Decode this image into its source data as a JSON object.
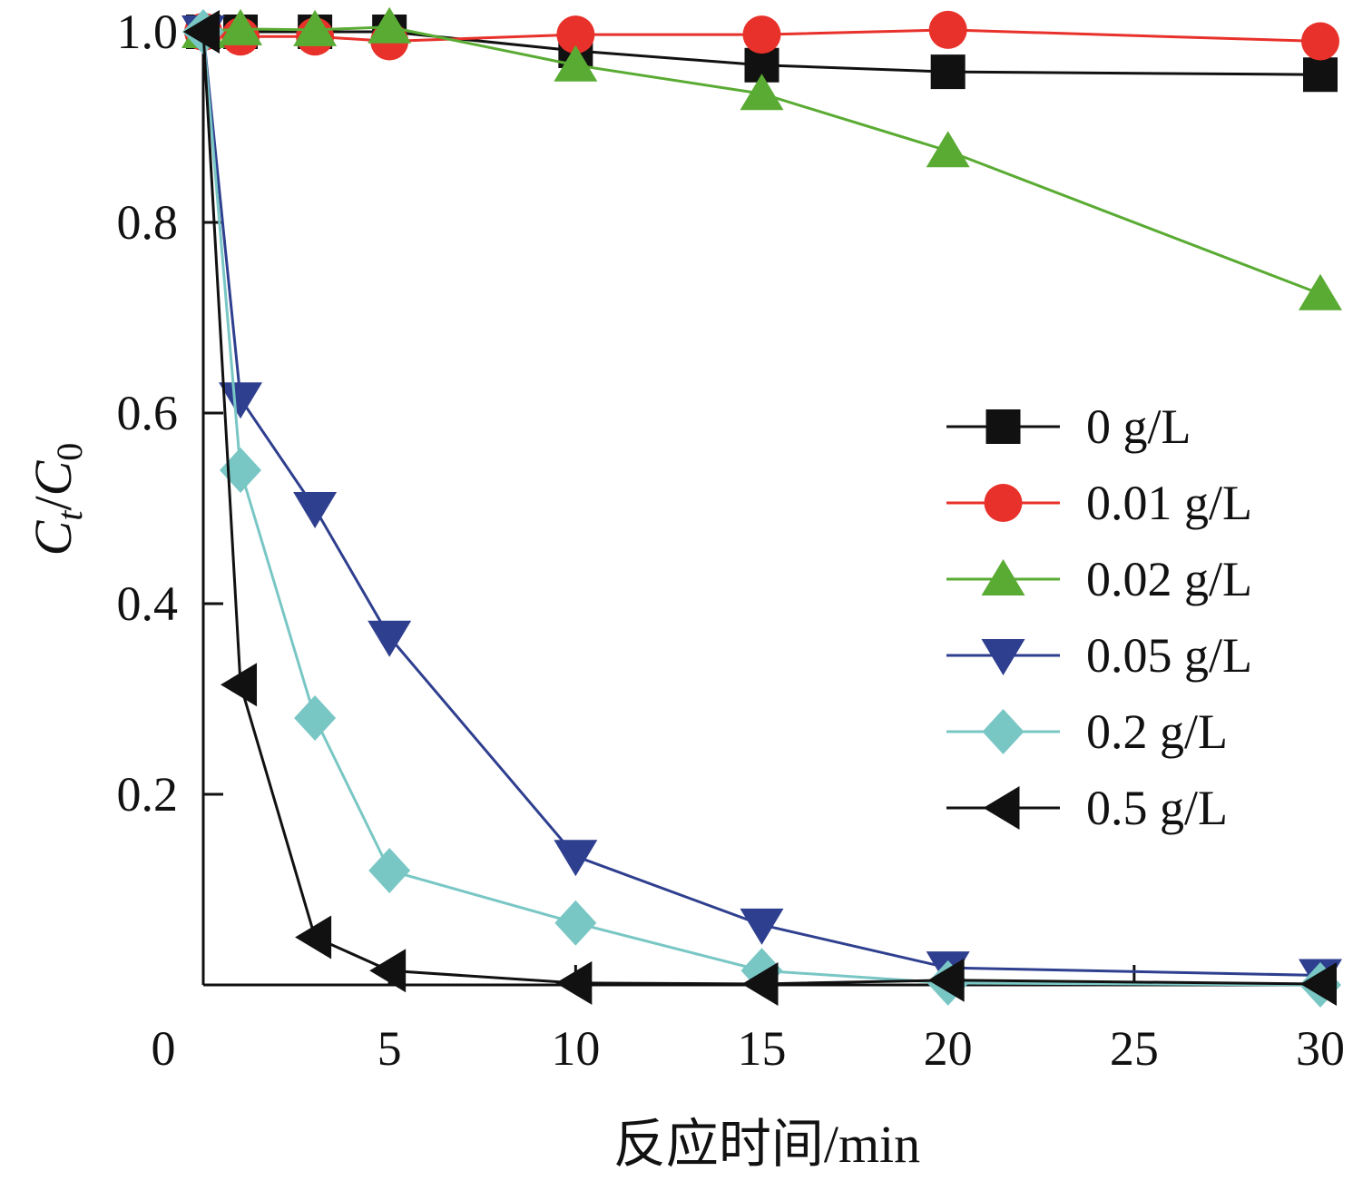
{
  "chart_data": {
    "type": "line",
    "title": "",
    "xlabel": "反应时间/min",
    "ylabel": {
      "main": "C",
      "sub1": "t",
      "sep": "/",
      "main2": "C",
      "sub2": "0"
    },
    "xlim": [
      0,
      30
    ],
    "ylim": [
      0,
      1.0
    ],
    "x_ticks": [
      0,
      5,
      10,
      15,
      20,
      25,
      30
    ],
    "x_tick_labels": [
      "0",
      "5",
      "10",
      "15",
      "20",
      "25",
      "30"
    ],
    "y_ticks": [
      0.2,
      0.4,
      0.6,
      0.8,
      1.0
    ],
    "y_tick_labels": [
      "0.2",
      "0.4",
      "0.6",
      "0.8",
      "1.0"
    ],
    "grid": false,
    "legend_position": "center-right",
    "x": [
      0,
      1,
      3,
      5,
      10,
      15,
      20,
      30
    ],
    "series": [
      {
        "name": "0 g/L",
        "marker": "square",
        "color": "#111111",
        "line_color": "#111111",
        "values": [
          1.0,
          1.0,
          1.0,
          1.0,
          0.98,
          0.965,
          0.958,
          0.955
        ]
      },
      {
        "name": "0.01 g/L",
        "marker": "circle",
        "color": "#e8312a",
        "line_color": "#e8312a",
        "values": [
          1.0,
          0.995,
          0.995,
          0.99,
          0.997,
          0.997,
          1.002,
          0.99
        ]
      },
      {
        "name": "0.02 g/L",
        "marker": "triangle-up",
        "color": "#5aab33",
        "line_color": "#5aab33",
        "values": [
          1.0,
          1.003,
          1.002,
          1.005,
          0.965,
          0.935,
          0.875,
          0.725
        ]
      },
      {
        "name": "0.05 g/L",
        "marker": "triangle-down",
        "color": "#2f3f8f",
        "line_color": "#2f3f8f",
        "values": [
          1.0,
          0.615,
          0.5,
          0.365,
          0.135,
          0.063,
          0.018,
          0.01
        ]
      },
      {
        "name": "0.2 g/L",
        "marker": "diamond",
        "color": "#79c7c5",
        "line_color": "#79c7c5",
        "values": [
          1.0,
          0.54,
          0.28,
          0.12,
          0.065,
          0.015,
          0.002,
          0.0
        ]
      },
      {
        "name": "0.5 g/L",
        "marker": "triangle-left",
        "color": "#111111",
        "line_color": "#111111",
        "values": [
          1.0,
          0.315,
          0.05,
          0.015,
          0.002,
          0.001,
          0.005,
          0.001
        ]
      }
    ]
  }
}
